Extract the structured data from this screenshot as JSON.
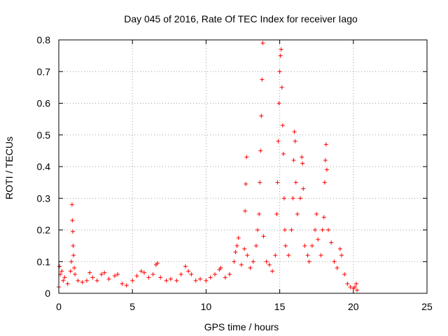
{
  "chart_data": {
    "type": "scatter",
    "title": "Day 045 of 2016, Rate Of TEC Index for receiver Iago",
    "xlabel": "GPS time / hours",
    "ylabel": "ROTI / TECUs",
    "xlim": [
      0,
      25
    ],
    "ylim": [
      0,
      0.8
    ],
    "xticks": [
      0,
      5,
      10,
      15,
      20,
      25
    ],
    "xtick_labels": [
      "0",
      "5",
      "10",
      "15",
      "20",
      "25"
    ],
    "yticks": [
      0,
      0.1,
      0.2,
      0.3,
      0.4,
      0.5,
      0.6,
      0.7,
      0.8
    ],
    "ytick_labels": [
      "0",
      "0.1",
      "0.2",
      "0.3",
      "0.4",
      "0.5",
      "0.6",
      "0.7",
      "0.8"
    ],
    "grid": true,
    "marker": "+",
    "color": "#ff0000",
    "series": [
      {
        "name": "ROTI",
        "points": [
          [
            0.0,
            0.02
          ],
          [
            0.05,
            0.085
          ],
          [
            0.1,
            0.06
          ],
          [
            0.2,
            0.07
          ],
          [
            0.3,
            0.04
          ],
          [
            0.4,
            0.05
          ],
          [
            0.6,
            0.03
          ],
          [
            0.8,
            0.07
          ],
          [
            0.85,
            0.1
          ],
          [
            0.9,
            0.28
          ],
          [
            0.92,
            0.23
          ],
          [
            0.95,
            0.195
          ],
          [
            0.97,
            0.15
          ],
          [
            1.0,
            0.12
          ],
          [
            1.05,
            0.08
          ],
          [
            1.1,
            0.06
          ],
          [
            1.3,
            0.04
          ],
          [
            1.6,
            0.035
          ],
          [
            1.9,
            0.04
          ],
          [
            2.1,
            0.065
          ],
          [
            2.3,
            0.05
          ],
          [
            2.6,
            0.04
          ],
          [
            2.9,
            0.06
          ],
          [
            3.1,
            0.065
          ],
          [
            3.4,
            0.045
          ],
          [
            3.8,
            0.055
          ],
          [
            4.0,
            0.06
          ],
          [
            4.3,
            0.03
          ],
          [
            4.6,
            0.025
          ],
          [
            5.0,
            0.04
          ],
          [
            5.3,
            0.055
          ],
          [
            5.6,
            0.07
          ],
          [
            5.8,
            0.065
          ],
          [
            6.1,
            0.05
          ],
          [
            6.4,
            0.06
          ],
          [
            6.6,
            0.09
          ],
          [
            6.7,
            0.095
          ],
          [
            6.9,
            0.05
          ],
          [
            7.3,
            0.04
          ],
          [
            7.6,
            0.045
          ],
          [
            8.0,
            0.04
          ],
          [
            8.3,
            0.06
          ],
          [
            8.6,
            0.085
          ],
          [
            8.8,
            0.07
          ],
          [
            9.0,
            0.06
          ],
          [
            9.3,
            0.04
          ],
          [
            9.6,
            0.045
          ],
          [
            10.0,
            0.04
          ],
          [
            10.3,
            0.05
          ],
          [
            10.6,
            0.06
          ],
          [
            10.9,
            0.075
          ],
          [
            11.0,
            0.08
          ],
          [
            11.3,
            0.05
          ],
          [
            11.6,
            0.06
          ],
          [
            11.9,
            0.1
          ],
          [
            12.0,
            0.13
          ],
          [
            12.1,
            0.15
          ],
          [
            12.2,
            0.175
          ],
          [
            12.4,
            0.09
          ],
          [
            12.6,
            0.14
          ],
          [
            12.65,
            0.26
          ],
          [
            12.7,
            0.345
          ],
          [
            12.75,
            0.43
          ],
          [
            12.8,
            0.12
          ],
          [
            13.0,
            0.08
          ],
          [
            13.2,
            0.1
          ],
          [
            13.4,
            0.15
          ],
          [
            13.5,
            0.2
          ],
          [
            13.6,
            0.25
          ],
          [
            13.65,
            0.35
          ],
          [
            13.7,
            0.45
          ],
          [
            13.75,
            0.56
          ],
          [
            13.8,
            0.675
          ],
          [
            13.85,
            0.79
          ],
          [
            13.9,
            0.18
          ],
          [
            14.1,
            0.1
          ],
          [
            14.3,
            0.09
          ],
          [
            14.5,
            0.07
          ],
          [
            14.7,
            0.12
          ],
          [
            14.8,
            0.25
          ],
          [
            14.85,
            0.35
          ],
          [
            14.9,
            0.48
          ],
          [
            14.95,
            0.6
          ],
          [
            15.0,
            0.7
          ],
          [
            15.05,
            0.75
          ],
          [
            15.1,
            0.77
          ],
          [
            15.15,
            0.65
          ],
          [
            15.2,
            0.53
          ],
          [
            15.25,
            0.44
          ],
          [
            15.3,
            0.3
          ],
          [
            15.35,
            0.2
          ],
          [
            15.4,
            0.15
          ],
          [
            15.6,
            0.12
          ],
          [
            15.8,
            0.2
          ],
          [
            15.9,
            0.3
          ],
          [
            15.95,
            0.42
          ],
          [
            16.0,
            0.51
          ],
          [
            16.05,
            0.48
          ],
          [
            16.1,
            0.35
          ],
          [
            16.2,
            0.25
          ],
          [
            16.4,
            0.3
          ],
          [
            16.5,
            0.43
          ],
          [
            16.55,
            0.41
          ],
          [
            16.6,
            0.33
          ],
          [
            16.7,
            0.15
          ],
          [
            16.9,
            0.12
          ],
          [
            17.0,
            0.1
          ],
          [
            17.2,
            0.15
          ],
          [
            17.4,
            0.2
          ],
          [
            17.5,
            0.25
          ],
          [
            17.6,
            0.17
          ],
          [
            17.8,
            0.12
          ],
          [
            17.9,
            0.2
          ],
          [
            18.0,
            0.24
          ],
          [
            18.05,
            0.35
          ],
          [
            18.1,
            0.42
          ],
          [
            18.15,
            0.47
          ],
          [
            18.2,
            0.39
          ],
          [
            18.3,
            0.2
          ],
          [
            18.5,
            0.16
          ],
          [
            18.7,
            0.1
          ],
          [
            18.9,
            0.08
          ],
          [
            19.1,
            0.14
          ],
          [
            19.2,
            0.12
          ],
          [
            19.4,
            0.06
          ],
          [
            19.6,
            0.03
          ],
          [
            19.8,
            0.02
          ],
          [
            20.0,
            0.015
          ],
          [
            20.1,
            0.02
          ],
          [
            20.2,
            0.03
          ],
          [
            20.25,
            0.01
          ]
        ]
      }
    ]
  }
}
